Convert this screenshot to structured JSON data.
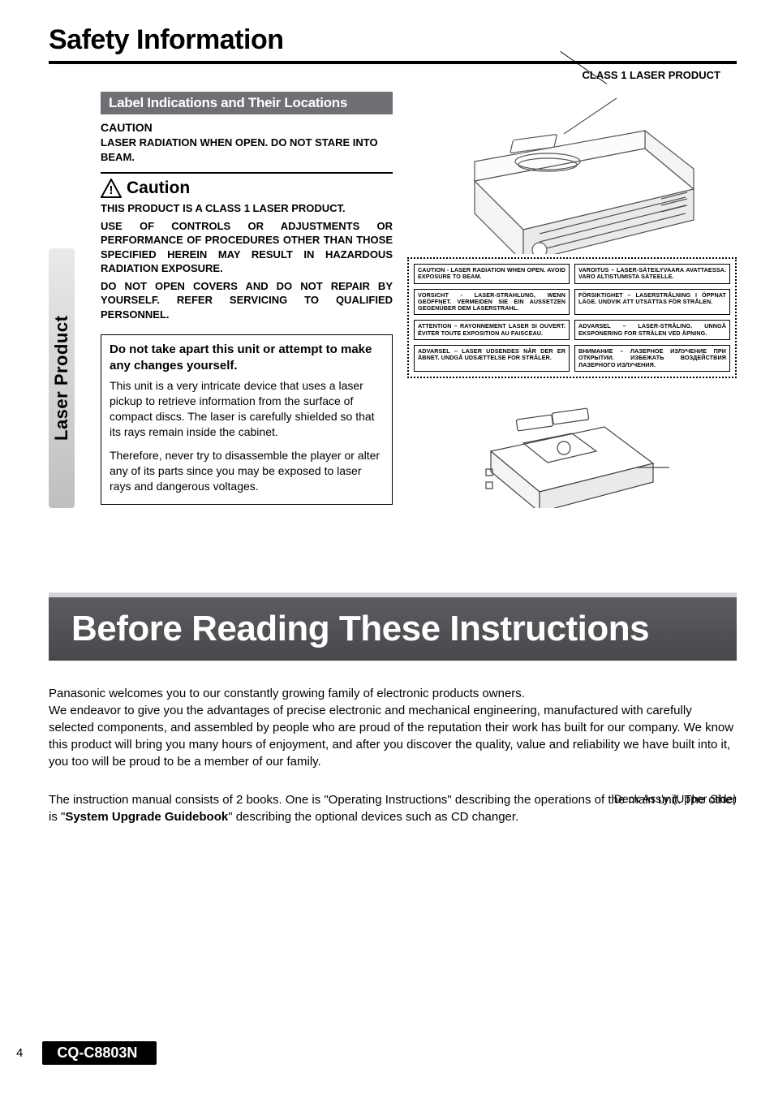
{
  "page": {
    "chapter_title": "Safety Information",
    "side_tab": "Laser Product",
    "page_number": "4",
    "model": "CQ-C8803N"
  },
  "left": {
    "subhead": "Label Indications and Their Locations",
    "caution_h": "CAUTION",
    "caution_body": "LASER RADIATION WHEN OPEN. DO NOT STARE INTO BEAM.",
    "caution_label": "Caution",
    "para1": "THIS PRODUCT IS A CLASS 1 LASER PRODUCT.",
    "para2": "USE OF CONTROLS OR ADJUSTMENTS OR PERFORMANCE OF PROCEDURES OTHER THAN THOSE SPECIFIED HEREIN MAY RESULT IN HAZARDOUS RADIATION EXPOSURE.",
    "para3": "DO NOT OPEN COVERS AND DO NOT REPAIR BY YOURSELF. REFER SERVICING TO QUALIFIED PERSONNEL.",
    "box_h": "Do not take apart this unit or attempt to make any changes yourself.",
    "box_p1": "This unit is a very intricate device that uses a laser pickup to retrieve information from the surface of compact discs. The laser is carefully shielded so that its rays remain inside the cabinet.",
    "box_p2": "Therefore, never try to disassemble the player or alter any of its parts since you may be exposed to laser rays and dangerous voltages."
  },
  "right": {
    "class1": "CLASS 1 LASER PRODUCT",
    "labels": [
      "CAUTION - LASER RADIATION WHEN OPEN. AVOID EXPOSURE TO BEAM.",
      "VAROITUS – LASER-SÄTEILYVAARA AVATTAESSA. VARO ALTISTUMISTA SÄTEELLE.",
      "VORSICHT - LASER-STRAHLUNG, WENN GEÖFFNET. VERMEIDEN SIE EIN AUSSETZEN GEGENÜBER DEM LASERSTRAHL.",
      "FÖRSIKTIGHET – LASERSTRÅLNING I ÖPPNAT LÄGE. UNDVIK ATT UTSÄTTAS FÖR STRÅLEN.",
      "ATTENTION – RAYONNEMENT LASER SI OUVERT. ÉVITER TOUTE EXPOSITION AU FAISCEAU.",
      "ADVARSEL – LASER-STRÅLING. UNNGÅ EKSPONERING FOR STRÅLEN VED ÅPNING.",
      "ADVARSEL – LASER UDSENDES NÅR DER ER ÅBNET. UNDGÅ UDSÆTTELSE FOR STRÅLER.",
      "ВНИМАНИЕ – ЛАЗЕРНОЕ ИЗЛУЧЕНИЕ ПРИ ОТКРЫТИИ. ИЗБЕЖАТЬ ВОЗДЕЙСТВИЯ ЛАЗЕРНОГО ИЗЛУЧЕНИЯ."
    ],
    "deck_label": "Deck Ass'y (Upper Side)"
  },
  "banner": "Before Reading These Instructions",
  "welcome": {
    "p1": "Panasonic welcomes you to our constantly growing family of electronic products owners.",
    "p2": "We endeavor to give you the advantages of precise electronic and mechanical engineering, manufactured with carefully selected components, and assembled by people who are proud of the reputation their work has built for our company. We know this product will bring you many hours of enjoyment, and after you discover the quality, value and reliability we have built into it, you too will be proud to be a member of our family.",
    "p3a": "The instruction manual consists of 2 books. One is \"Operating Instructions\" describing the operations of the main unit. The other is \"",
    "p3b": "System Upgrade Guidebook",
    "p3c": "\" describing the optional devices such as CD changer."
  },
  "colors": {
    "banner_bg": "#55555a",
    "subhead_bg": "#6f6f74",
    "text": "#000000",
    "page_bg": "#ffffff"
  }
}
